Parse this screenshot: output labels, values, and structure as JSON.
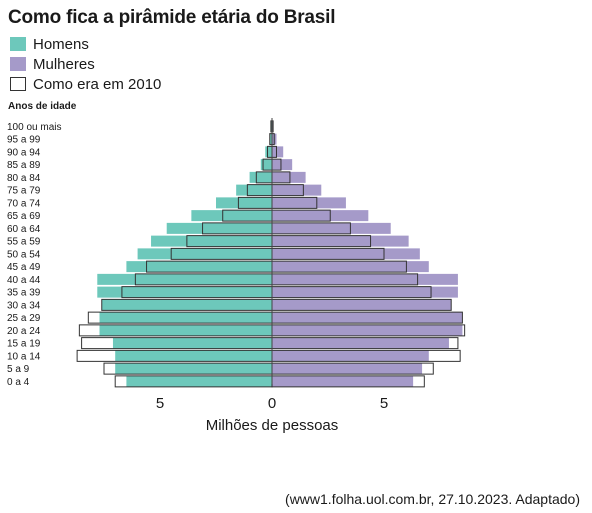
{
  "title": "Como fica a pirâmide etária do Brasil",
  "source": "(www1.folha.uol.com.br, 27.10.2023. Adaptado)",
  "colors": {
    "men": "#6dc8bb",
    "women": "#a59ac9",
    "outline": "#333333"
  },
  "chart_data": {
    "type": "bar",
    "orientation": "horizontal-pyramid",
    "ylabel": "Anos de idade",
    "xlabel": "Milhões de pessoas",
    "x_ticks": [
      {
        "value": -5,
        "label": "5"
      },
      {
        "value": 0,
        "label": "0"
      },
      {
        "value": 5,
        "label": "5"
      }
    ],
    "xlim": [
      -9,
      9
    ],
    "legend": [
      {
        "label": "Homens",
        "type": "men"
      },
      {
        "label": "Mulheres",
        "type": "women"
      },
      {
        "label": "Como era em 2010",
        "type": "outline"
      }
    ],
    "categories": [
      "100 ou mais",
      "95 a 99",
      "90 a 94",
      "85 a 89",
      "80 a 84",
      "75 a 79",
      "70 a 74",
      "65 a 69",
      "60 a 64",
      "55 a 59",
      "50 a 54",
      "45 a 49",
      "40 a 44",
      "35 a 39",
      "30 a 34",
      "25 a 29",
      "20 a 24",
      "15 a 19",
      "10 a 14",
      "5 a 9",
      "0 a 4"
    ],
    "series": [
      {
        "name": "Homens",
        "values": [
          0.05,
          0.1,
          0.3,
          0.5,
          1.0,
          1.6,
          2.5,
          3.6,
          4.7,
          5.4,
          6.0,
          6.5,
          7.8,
          7.8,
          7.6,
          7.7,
          7.7,
          7.1,
          7.0,
          7.0,
          6.5
        ]
      },
      {
        "name": "Mulheres",
        "values": [
          0.05,
          0.2,
          0.5,
          0.9,
          1.5,
          2.2,
          3.3,
          4.3,
          5.3,
          6.1,
          6.6,
          7.0,
          8.3,
          8.3,
          8.0,
          8.5,
          8.5,
          7.9,
          7.0,
          6.7,
          6.3
        ]
      },
      {
        "name": "Como era em 2010",
        "side": "men",
        "values": [
          0.05,
          0.1,
          0.2,
          0.4,
          0.7,
          1.1,
          1.5,
          2.2,
          3.1,
          3.8,
          4.5,
          5.6,
          6.1,
          6.7,
          7.6,
          8.2,
          8.6,
          8.5,
          8.7,
          7.5,
          7.0
        ]
      },
      {
        "name": "Como era em 2010",
        "side": "women",
        "values": [
          0.05,
          0.1,
          0.2,
          0.4,
          0.8,
          1.4,
          2.0,
          2.6,
          3.5,
          4.4,
          5.0,
          6.0,
          6.5,
          7.1,
          8.0,
          8.5,
          8.6,
          8.3,
          8.4,
          7.2,
          6.8
        ]
      }
    ]
  }
}
